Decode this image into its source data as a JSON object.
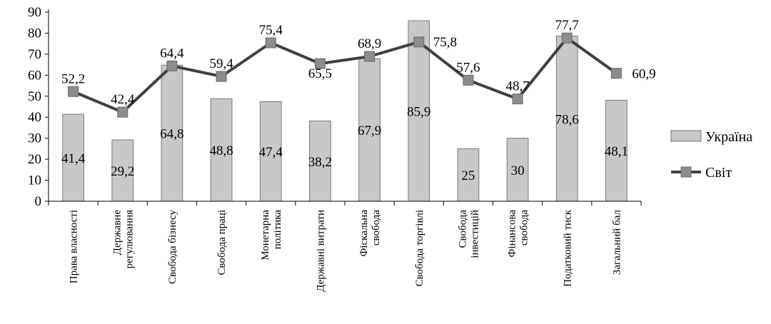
{
  "chart_data": {
    "type": "bar",
    "title": "",
    "xlabel": "",
    "ylabel": "",
    "ylim": [
      0,
      90
    ],
    "y_ticks": [
      0,
      10,
      20,
      30,
      40,
      50,
      60,
      70,
      80,
      90
    ],
    "grid": false,
    "legend_position": "right",
    "categories": [
      [
        "Права власності"
      ],
      [
        "Державне",
        "регулювання"
      ],
      [
        "Свобода бізнесу"
      ],
      [
        "Свобода праці"
      ],
      [
        "Монетарна",
        "політика"
      ],
      [
        "Державні витрати"
      ],
      [
        "Фіскальна",
        "свобода"
      ],
      [
        "Свобода торгівлі"
      ],
      [
        "Свобода",
        "інвестицій"
      ],
      [
        "Фінансова",
        "свобода"
      ],
      [
        "Податковий тиск"
      ],
      [
        "Загальний бал"
      ]
    ],
    "series": [
      {
        "name": "Україна",
        "type": "bar",
        "color": "#c8c8c8",
        "values": [
          41.4,
          29.2,
          64.8,
          48.8,
          47.4,
          38.2,
          67.9,
          85.9,
          25,
          30,
          78.6,
          48.1
        ],
        "labels": [
          "41,4",
          "29,2",
          "64,8",
          "48,8",
          "47,4",
          "38,2",
          "67,9",
          "85,9",
          "25",
          "30",
          "78,6",
          "48,1"
        ]
      },
      {
        "name": "Світ",
        "type": "line",
        "color": "#404040",
        "marker_color": "#8c8c8c",
        "values": [
          52.2,
          42.4,
          64.4,
          59.4,
          75.4,
          65.5,
          68.9,
          75.8,
          57.6,
          48.7,
          77.7,
          60.9
        ],
        "labels": [
          "52,2",
          "42,4",
          "64,4",
          "59,4",
          "75,4",
          "65,5",
          "68,9",
          "75,8",
          "57,6",
          "48,7",
          "77,7",
          "60,9"
        ]
      }
    ]
  }
}
